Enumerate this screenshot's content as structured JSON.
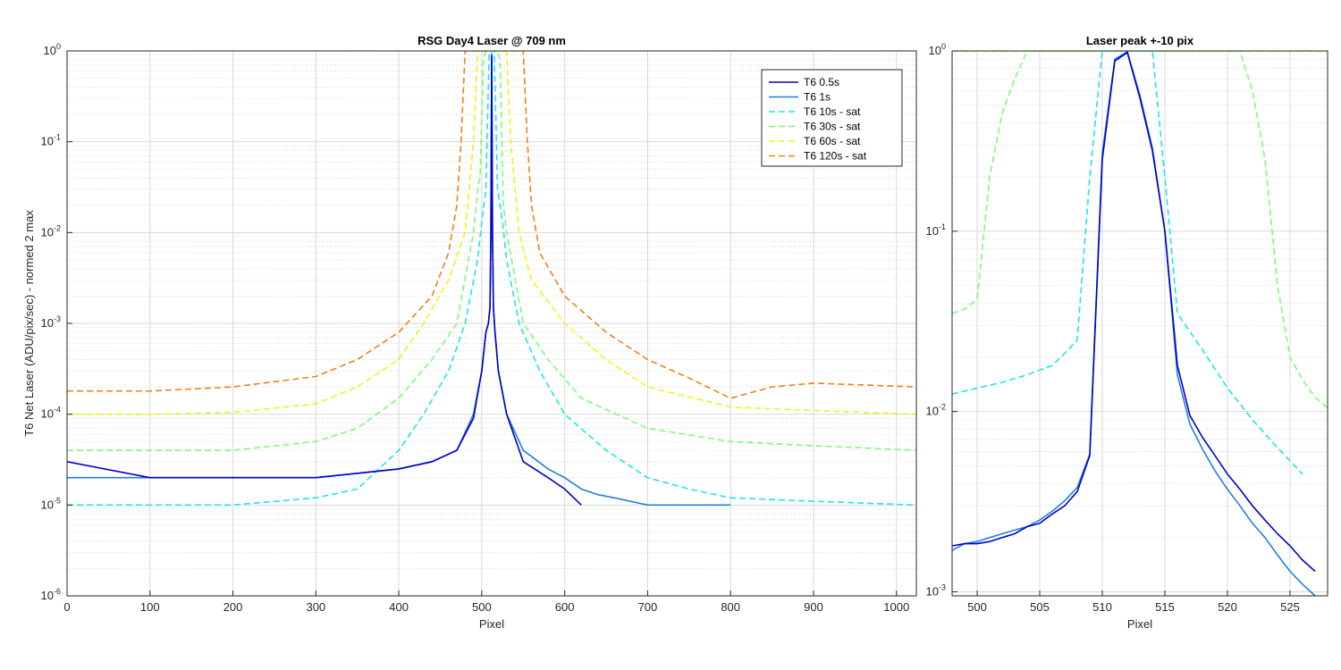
{
  "chart_data": [
    {
      "type": "line",
      "title": "RSG  Day4 Laser @ 709 nm",
      "xlabel": "Pixel",
      "ylabel": "T6 Net Laser (ADU/pix/sec) - normed 2 max",
      "xlim": [
        0,
        1024
      ],
      "ylim": [
        1e-06,
        1
      ],
      "yscale": "log",
      "grid": true,
      "minor_grid": true,
      "legend_position": "top-right",
      "xticks": [
        0,
        100,
        200,
        300,
        400,
        500,
        600,
        700,
        800,
        900,
        1000
      ],
      "xtick_labels": [
        "0",
        "100",
        "200",
        "300",
        "400",
        "500",
        "600",
        "700",
        "800",
        "900",
        "1000"
      ],
      "yticks": [
        1e-06,
        1e-05,
        0.0001,
        0.001,
        0.01,
        0.1,
        1
      ],
      "ytick_labels": [
        {
          "base": "10",
          "exp": "-6"
        },
        {
          "base": "10",
          "exp": "-5"
        },
        {
          "base": "10",
          "exp": "-4"
        },
        {
          "base": "10",
          "exp": "-3"
        },
        {
          "base": "10",
          "exp": "-2"
        },
        {
          "base": "10",
          "exp": "-1"
        },
        {
          "base": "10",
          "exp": "0"
        }
      ],
      "series": [
        {
          "name": "T6 0.5s",
          "color": "#0000cd",
          "dash": "solid",
          "x": [
            0,
            100,
            200,
            300,
            400,
            440,
            470,
            490,
            500,
            505,
            508,
            510,
            511,
            512,
            513,
            514,
            516,
            520,
            530,
            550,
            580,
            600,
            620
          ],
          "y": [
            3e-05,
            2e-05,
            2e-05,
            2e-05,
            2.5e-05,
            3e-05,
            4e-05,
            9e-05,
            0.0003,
            0.0008,
            0.001,
            0.0015,
            0.01,
            0.9,
            0.01,
            0.0015,
            0.0008,
            0.0003,
            0.0001,
            3e-05,
            2e-05,
            1.5e-05,
            1e-05
          ]
        },
        {
          "name": "T6 1s",
          "color": "#1f7fe0",
          "dash": "solid",
          "x": [
            0,
            100,
            200,
            300,
            400,
            440,
            470,
            490,
            500,
            505,
            508,
            510,
            511,
            512,
            513,
            514,
            516,
            520,
            530,
            550,
            580,
            600,
            620,
            640,
            660,
            700,
            750,
            800
          ],
          "y": [
            2e-05,
            2e-05,
            2e-05,
            2e-05,
            2.5e-05,
            3e-05,
            4e-05,
            0.0001,
            0.0003,
            0.0008,
            0.001,
            0.0015,
            0.01,
            0.95,
            0.01,
            0.0015,
            0.0008,
            0.0003,
            0.0001,
            4e-05,
            2.5e-05,
            2e-05,
            1.5e-05,
            1.3e-05,
            1.2e-05,
            1e-05,
            1e-05,
            1e-05
          ]
        },
        {
          "name": "T6 10s - sat",
          "color": "#1ee6e6",
          "dash": "dashed",
          "x": [
            0,
            100,
            200,
            300,
            350,
            400,
            430,
            460,
            480,
            495,
            500,
            505,
            509,
            512,
            515,
            519,
            525,
            530,
            545,
            570,
            600,
            650,
            700,
            750,
            800,
            900,
            1024
          ],
          "y": [
            1e-05,
            1e-05,
            1e-05,
            1.2e-05,
            1.5e-05,
            4e-05,
            0.0001,
            0.0003,
            0.001,
            0.005,
            0.013,
            0.03,
            1,
            1,
            1,
            0.03,
            0.013,
            0.005,
            0.001,
            0.0003,
            0.0001,
            4e-05,
            2e-05,
            1.5e-05,
            1.2e-05,
            1.1e-05,
            1e-05
          ]
        },
        {
          "name": "T6 30s - sat",
          "color": "#7dfa7d",
          "dash": "dashed",
          "x": [
            0,
            100,
            200,
            300,
            350,
            400,
            440,
            470,
            490,
            496,
            498,
            502,
            505,
            519,
            522,
            526,
            530,
            550,
            580,
            620,
            700,
            800,
            900,
            1024
          ],
          "y": [
            4e-05,
            4e-05,
            4e-05,
            5e-05,
            7e-05,
            0.00015,
            0.0004,
            0.001,
            0.01,
            0.035,
            0.04,
            0.8,
            1,
            1,
            0.8,
            0.02,
            0.01,
            0.001,
            0.0004,
            0.00015,
            7e-05,
            5e-05,
            4.5e-05,
            4e-05
          ]
        },
        {
          "name": "T6 60s - sat",
          "color": "#f2f21a",
          "dash": "dashed",
          "x": [
            0,
            100,
            200,
            300,
            350,
            400,
            430,
            460,
            480,
            490,
            495,
            530,
            535,
            545,
            560,
            600,
            650,
            700,
            800,
            900,
            1024
          ],
          "y": [
            0.0001,
            0.0001,
            0.000105,
            0.00013,
            0.0002,
            0.0004,
            0.001,
            0.003,
            0.01,
            0.1,
            1,
            1,
            0.1,
            0.01,
            0.003,
            0.001,
            0.0004,
            0.0002,
            0.00012,
            0.00011,
            0.0001
          ]
        },
        {
          "name": "T6 120s - sat",
          "color": "#f27f1a",
          "dash": "dashed",
          "x": [
            0,
            100,
            200,
            300,
            350,
            400,
            440,
            460,
            470,
            475,
            480,
            550,
            555,
            560,
            570,
            600,
            650,
            700,
            750,
            800,
            850,
            900,
            1024
          ],
          "y": [
            0.00018,
            0.00018,
            0.0002,
            0.00026,
            0.0004,
            0.0008,
            0.002,
            0.006,
            0.02,
            0.1,
            1,
            1,
            0.1,
            0.02,
            0.006,
            0.002,
            0.0008,
            0.0004,
            0.00025,
            0.00015,
            0.0002,
            0.00022,
            0.0002
          ]
        }
      ]
    },
    {
      "type": "line",
      "title": "Laser peak +-10 pix",
      "xlabel": "Pixel",
      "ylabel": "",
      "xlim": [
        498,
        528
      ],
      "ylim": [
        0.00095,
        1
      ],
      "yscale": "log",
      "grid": true,
      "minor_grid": true,
      "xticks": [
        500,
        505,
        510,
        515,
        520,
        525
      ],
      "xtick_labels": [
        "500",
        "505",
        "510",
        "515",
        "520",
        "525"
      ],
      "yticks": [
        0.001,
        0.01,
        0.1,
        1
      ],
      "ytick_labels": [
        {
          "base": "10",
          "exp": "-3"
        },
        {
          "base": "10",
          "exp": "-2"
        },
        {
          "base": "10",
          "exp": "-1"
        },
        {
          "base": "10",
          "exp": "0"
        }
      ],
      "series": [
        {
          "name": "T6 0.5s",
          "color": "#0000cd",
          "dash": "solid",
          "x": [
            498,
            499,
            500,
            501,
            502,
            503,
            504,
            505,
            506,
            507,
            508,
            509,
            510,
            511,
            512,
            513,
            514,
            515,
            516,
            517,
            518,
            519,
            520,
            521,
            522,
            523,
            524,
            525,
            526,
            527
          ],
          "y": [
            0.0018,
            0.00185,
            0.00185,
            0.0019,
            0.002,
            0.0021,
            0.0023,
            0.0024,
            0.0027,
            0.003,
            0.0036,
            0.0057,
            0.25,
            0.88,
            0.98,
            0.55,
            0.28,
            0.1,
            0.018,
            0.0095,
            0.0072,
            0.0057,
            0.0045,
            0.0037,
            0.003,
            0.0025,
            0.0021,
            0.0018,
            0.0015,
            0.0013
          ]
        },
        {
          "name": "T6 1s",
          "color": "#1f7fe0",
          "dash": "solid",
          "x": [
            498,
            499,
            500,
            501,
            502,
            503,
            504,
            505,
            506,
            507,
            508,
            509,
            510,
            511,
            512,
            513,
            514,
            515,
            516,
            517,
            518,
            519,
            520,
            521,
            522,
            523,
            524,
            525,
            526,
            527
          ],
          "y": [
            0.0017,
            0.00185,
            0.0019,
            0.002,
            0.0021,
            0.0022,
            0.0023,
            0.0025,
            0.0028,
            0.0032,
            0.0038,
            0.0058,
            0.27,
            0.9,
            0.99,
            0.57,
            0.29,
            0.1,
            0.016,
            0.0085,
            0.0062,
            0.0047,
            0.0037,
            0.003,
            0.0024,
            0.002,
            0.0016,
            0.0013,
            0.0011,
            0.00095
          ]
        },
        {
          "name": "T6 10s - sat",
          "color": "#1ee6e6",
          "dash": "dashed",
          "x": [
            498,
            500,
            502,
            504,
            506,
            507,
            508,
            509,
            510,
            514,
            515,
            516,
            518,
            520,
            522,
            524,
            526
          ],
          "y": [
            0.0125,
            0.0135,
            0.0145,
            0.016,
            0.018,
            0.021,
            0.025,
            0.2,
            1,
            1,
            0.2,
            0.035,
            0.022,
            0.0135,
            0.009,
            0.0063,
            0.0045
          ]
        },
        {
          "name": "T6 30s - sat",
          "color": "#7dfa7d",
          "dash": "dashed",
          "x": [
            498,
            499,
            500,
            501,
            502,
            503,
            504,
            521,
            522,
            523,
            524,
            525,
            526,
            527,
            528
          ],
          "y": [
            0.035,
            0.037,
            0.042,
            0.2,
            0.45,
            0.7,
            1,
            1,
            0.6,
            0.25,
            0.05,
            0.02,
            0.015,
            0.012,
            0.0105
          ]
        },
        {
          "name": "T6 60s - sat",
          "color": "#f2f21a",
          "dash": "dashed",
          "x": [
            498,
            528
          ],
          "y": [
            1,
            1
          ]
        },
        {
          "name": "T6 120s - sat",
          "color": "#f27f1a",
          "dash": "dashed",
          "x": [
            498,
            528
          ],
          "y": [
            1,
            1
          ]
        }
      ]
    }
  ]
}
